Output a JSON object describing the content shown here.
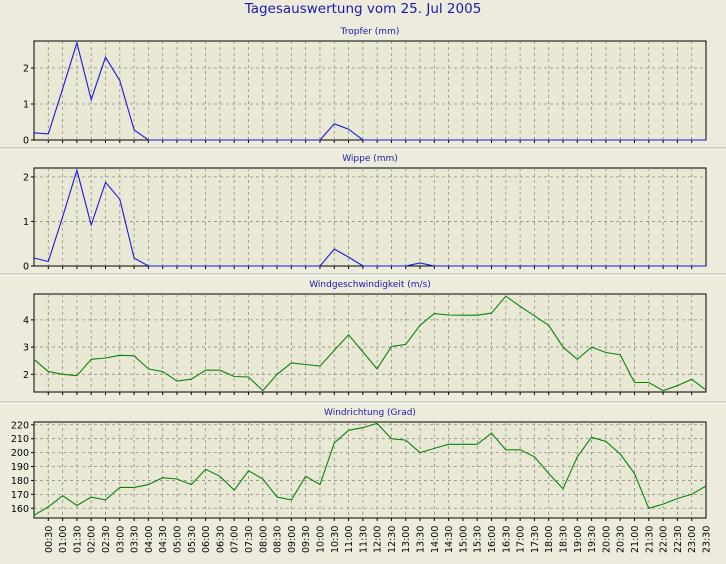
{
  "title": "Tagesauswertung vom 25. Jul 2005",
  "colors": {
    "blue": "#1818e0",
    "green": "#0a820a"
  },
  "time_labels": [
    "00:30",
    "01:00",
    "01:30",
    "02:00",
    "02:30",
    "03:00",
    "03:30",
    "04:00",
    "04:30",
    "05:00",
    "05:30",
    "06:00",
    "06:30",
    "07:00",
    "07:30",
    "08:00",
    "08:30",
    "09:00",
    "09:30",
    "10:00",
    "10:30",
    "11:00",
    "11:30",
    "12:00",
    "12:30",
    "13:00",
    "13:30",
    "14:00",
    "14:30",
    "15:00",
    "15:30",
    "16:00",
    "16:30",
    "17:00",
    "17:30",
    "18:00",
    "18:30",
    "19:00",
    "19:30",
    "20:00",
    "20:30",
    "21:00",
    "21:30",
    "22:00",
    "22:30",
    "23:00",
    "23:30"
  ],
  "chart_data": [
    {
      "type": "line",
      "title": "Tropfer (mm)",
      "color": "#1818e0",
      "ylim": [
        0,
        2.75
      ],
      "yticks": [
        0,
        1,
        2
      ],
      "values": [
        0.2,
        0.17,
        1.42,
        2.7,
        1.12,
        2.3,
        1.65,
        0.28,
        0,
        0,
        0,
        0,
        0,
        0,
        0,
        0,
        0,
        0,
        0,
        0,
        0,
        0.45,
        0.3,
        0,
        0,
        0,
        0,
        0,
        0,
        0,
        0,
        0,
        0,
        0,
        0,
        0,
        0,
        0,
        0,
        0,
        0,
        0,
        0,
        0,
        0,
        0,
        0,
        0
      ]
    },
    {
      "type": "line",
      "title": "Wippe (mm)",
      "color": "#1818e0",
      "ylim": [
        0,
        2.2
      ],
      "yticks": [
        0,
        1,
        2
      ],
      "values": [
        0.18,
        0.1,
        1.1,
        2.15,
        0.92,
        1.88,
        1.5,
        0.18,
        0,
        0,
        0,
        0,
        0,
        0,
        0,
        0,
        0,
        0,
        0,
        0,
        0,
        0.38,
        0.2,
        0,
        0,
        0,
        0,
        0.07,
        0,
        0,
        0,
        0,
        0,
        0,
        0,
        0,
        0,
        0,
        0,
        0,
        0,
        0,
        0,
        0,
        0,
        0,
        0,
        0
      ]
    },
    {
      "type": "line",
      "title": "Windgeschwindigkeit (m/s)",
      "color": "#0a820a",
      "ylim": [
        1.35,
        4.95
      ],
      "yticks": [
        2,
        3,
        4
      ],
      "values": [
        2.55,
        2.1,
        2.0,
        1.95,
        2.55,
        2.6,
        2.7,
        2.68,
        2.2,
        2.1,
        1.75,
        1.82,
        2.15,
        2.15,
        1.92,
        1.9,
        1.4,
        2.0,
        2.42,
        2.36,
        2.3,
        2.88,
        3.45,
        2.82,
        2.2,
        3.02,
        3.1,
        3.8,
        4.23,
        4.18,
        4.17,
        4.17,
        4.25,
        4.87,
        4.5,
        4.15,
        3.8,
        3.0,
        2.55,
        3.0,
        2.8,
        2.72,
        1.7,
        1.7,
        1.4,
        1.58,
        1.82,
        1.42
      ]
    },
    {
      "type": "line",
      "title": "Windrichtung (Grad)",
      "color": "#0a820a",
      "ylim": [
        153,
        222
      ],
      "yticks": [
        160,
        170,
        180,
        190,
        200,
        210,
        220
      ],
      "values": [
        155,
        161,
        169,
        162,
        168,
        166,
        175,
        175,
        177,
        182,
        181,
        177,
        188,
        183,
        173,
        187,
        181,
        168,
        166,
        183,
        177,
        207,
        216,
        218,
        221,
        210,
        209,
        200,
        203,
        206,
        206,
        206,
        214,
        202,
        202,
        197,
        185,
        174,
        197,
        211,
        208,
        199,
        185,
        160,
        163,
        167,
        170,
        176
      ]
    }
  ]
}
